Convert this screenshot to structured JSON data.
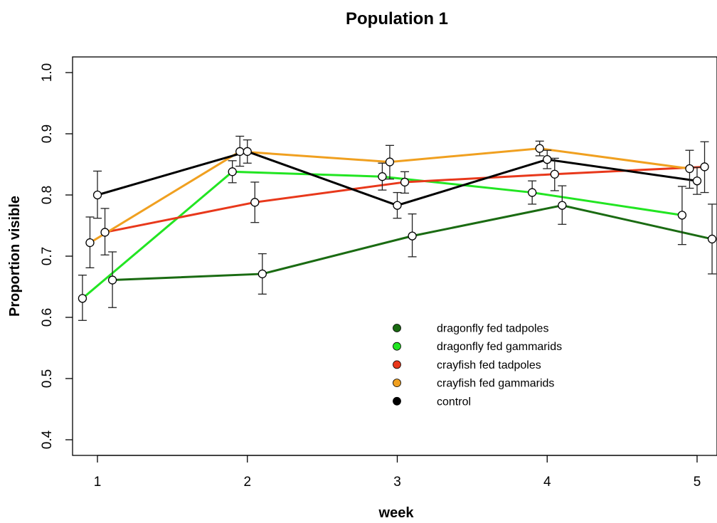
{
  "chart_data": {
    "type": "line",
    "title": "Population 1",
    "xlabel": "week",
    "ylabel": "Proportion visible",
    "x": [
      1,
      2,
      3,
      4,
      5
    ],
    "xlim": [
      0.85,
      5.15
    ],
    "ylim": [
      0.38,
      1.02
    ],
    "xticks": [
      "1",
      "2",
      "3",
      "4",
      "5"
    ],
    "yticks": [
      "0.4",
      "0.5",
      "0.6",
      "0.7",
      "0.8",
      "0.9",
      "1.0"
    ],
    "grid": false,
    "legend_position": "bottom-right",
    "series": [
      {
        "name": "dragonfly fed tadpoles",
        "color": "#1a6b12",
        "offset": 0.1,
        "values": [
          0.661,
          0.671,
          0.733,
          0.783,
          0.728
        ],
        "err_low": [
          0.616,
          0.638,
          0.699,
          0.752,
          0.671
        ],
        "err_high": [
          0.707,
          0.704,
          0.769,
          0.815,
          0.785
        ]
      },
      {
        "name": "dragonfly fed gammarids",
        "color": "#22e522",
        "offset": -0.1,
        "values": [
          0.631,
          0.838,
          0.83,
          0.804,
          0.767
        ],
        "err_low": [
          0.595,
          0.82,
          0.808,
          0.785,
          0.719
        ],
        "err_high": [
          0.669,
          0.856,
          0.852,
          0.823,
          0.814
        ]
      },
      {
        "name": "crayfish fed tadpoles",
        "color": "#e8381b",
        "offset": 0.05,
        "values": [
          0.739,
          0.788,
          0.821,
          0.834,
          0.846
        ],
        "err_low": [
          0.702,
          0.755,
          0.803,
          0.807,
          0.804
        ],
        "err_high": [
          0.778,
          0.821,
          0.838,
          0.86,
          0.887
        ]
      },
      {
        "name": "crayfish fed gammarids",
        "color": "#f0a020",
        "offset": -0.05,
        "values": [
          0.722,
          0.871,
          0.854,
          0.876,
          0.843
        ],
        "err_low": [
          0.681,
          0.847,
          0.826,
          0.864,
          0.811
        ],
        "err_high": [
          0.764,
          0.896,
          0.881,
          0.888,
          0.873
        ]
      },
      {
        "name": "control",
        "color": "#000000",
        "offset": 0.0,
        "values": [
          0.8,
          0.871,
          0.783,
          0.858,
          0.823
        ],
        "err_low": [
          0.762,
          0.852,
          0.762,
          0.843,
          0.801
        ],
        "err_high": [
          0.839,
          0.89,
          0.804,
          0.873,
          0.845
        ]
      }
    ]
  }
}
